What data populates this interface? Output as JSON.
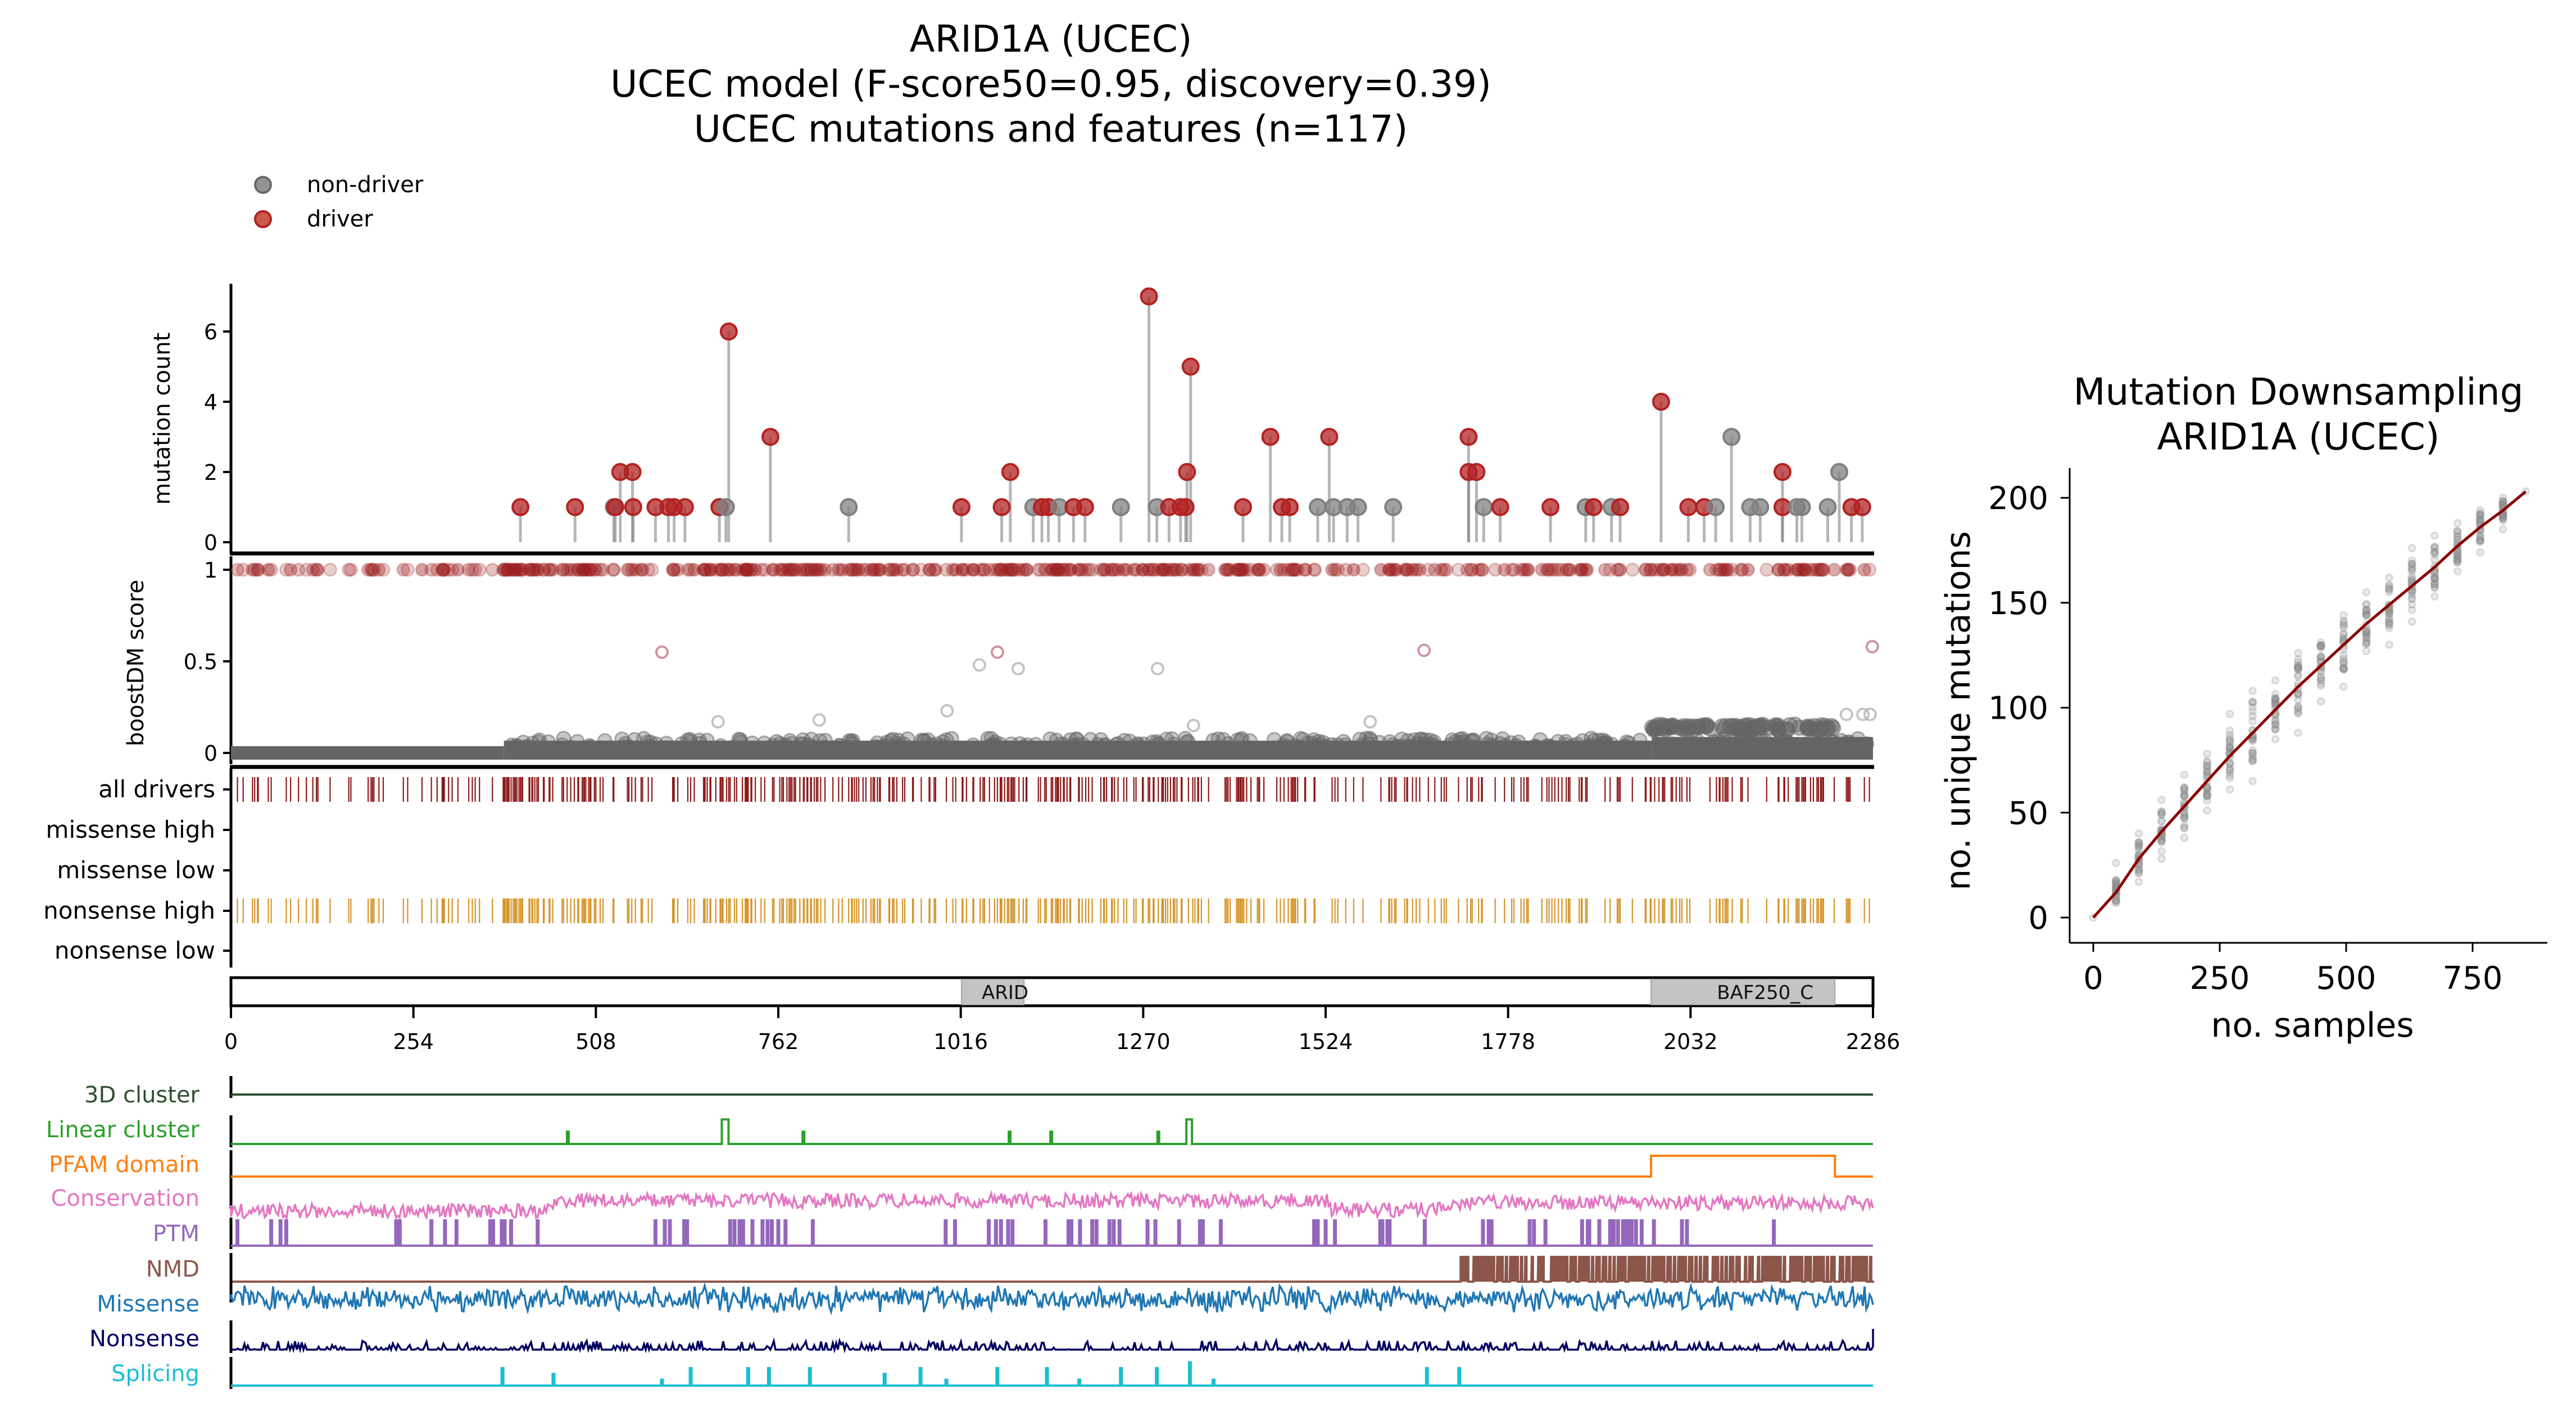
{
  "title_lines": [
    "ARID1A (UCEC)",
    "UCEC model (F-score50=0.95, discovery=0.39)",
    "UCEC mutations and features (n=117)"
  ],
  "legend": [
    {
      "label": "non-driver",
      "color": "#808080"
    },
    {
      "label": "driver",
      "color": "#b22222"
    }
  ],
  "colors": {
    "driver": "#b22222",
    "non_driver": "#808080",
    "stem": "#a9a9a9",
    "all_drivers": "#8b1a1a",
    "nonsense_high": "#d4952b",
    "boost_low": "#656565",
    "boost_high": "#9b1c1c",
    "domain_fill": "#c4c4c4",
    "line": "#8b0000"
  },
  "chart_data": [
    {
      "type": "scatter",
      "name": "lollipop",
      "ylabel": "mutation count",
      "yticks": [
        0,
        2,
        4,
        6
      ],
      "ylim": [
        -0.3,
        7.5
      ],
      "xlim": [
        0,
        2286
      ],
      "points": [
        {
          "pos": 403,
          "count": 1,
          "driver": true
        },
        {
          "pos": 479,
          "count": 1,
          "driver": true
        },
        {
          "pos": 533,
          "count": 1,
          "driver": false
        },
        {
          "pos": 535,
          "count": 1,
          "driver": true
        },
        {
          "pos": 542,
          "count": 2,
          "driver": true
        },
        {
          "pos": 559,
          "count": 2,
          "driver": true
        },
        {
          "pos": 560,
          "count": 1,
          "driver": true
        },
        {
          "pos": 591,
          "count": 1,
          "driver": true
        },
        {
          "pos": 609,
          "count": 1,
          "driver": true
        },
        {
          "pos": 617,
          "count": 1,
          "driver": true
        },
        {
          "pos": 632,
          "count": 1,
          "driver": true
        },
        {
          "pos": 680,
          "count": 1,
          "driver": true
        },
        {
          "pos": 689,
          "count": 1,
          "driver": false
        },
        {
          "pos": 693,
          "count": 6,
          "driver": true
        },
        {
          "pos": 751,
          "count": 3,
          "driver": true
        },
        {
          "pos": 860,
          "count": 1,
          "driver": false
        },
        {
          "pos": 1017,
          "count": 1,
          "driver": true
        },
        {
          "pos": 1073,
          "count": 1,
          "driver": true
        },
        {
          "pos": 1085,
          "count": 2,
          "driver": true
        },
        {
          "pos": 1117,
          "count": 1,
          "driver": false
        },
        {
          "pos": 1129,
          "count": 1,
          "driver": true
        },
        {
          "pos": 1138,
          "count": 1,
          "driver": true
        },
        {
          "pos": 1153,
          "count": 1,
          "driver": false
        },
        {
          "pos": 1173,
          "count": 1,
          "driver": true
        },
        {
          "pos": 1189,
          "count": 1,
          "driver": true
        },
        {
          "pos": 1239,
          "count": 1,
          "driver": false
        },
        {
          "pos": 1278,
          "count": 7,
          "driver": true
        },
        {
          "pos": 1289,
          "count": 1,
          "driver": false
        },
        {
          "pos": 1306,
          "count": 1,
          "driver": true
        },
        {
          "pos": 1322,
          "count": 1,
          "driver": true
        },
        {
          "pos": 1329,
          "count": 1,
          "driver": true
        },
        {
          "pos": 1331,
          "count": 2,
          "driver": true
        },
        {
          "pos": 1336,
          "count": 5,
          "driver": true
        },
        {
          "pos": 1409,
          "count": 1,
          "driver": true
        },
        {
          "pos": 1447,
          "count": 3,
          "driver": true
        },
        {
          "pos": 1463,
          "count": 1,
          "driver": true
        },
        {
          "pos": 1474,
          "count": 1,
          "driver": true
        },
        {
          "pos": 1513,
          "count": 1,
          "driver": false
        },
        {
          "pos": 1529,
          "count": 3,
          "driver": true
        },
        {
          "pos": 1535,
          "count": 1,
          "driver": false
        },
        {
          "pos": 1554,
          "count": 1,
          "driver": false
        },
        {
          "pos": 1569,
          "count": 1,
          "driver": false
        },
        {
          "pos": 1618,
          "count": 1,
          "driver": false
        },
        {
          "pos": 1723,
          "count": 3,
          "driver": true
        },
        {
          "pos": 1723,
          "count": 2,
          "driver": true
        },
        {
          "pos": 1734,
          "count": 2,
          "driver": true
        },
        {
          "pos": 1744,
          "count": 1,
          "driver": false
        },
        {
          "pos": 1767,
          "count": 1,
          "driver": true
        },
        {
          "pos": 1837,
          "count": 1,
          "driver": true
        },
        {
          "pos": 1886,
          "count": 1,
          "driver": false
        },
        {
          "pos": 1897,
          "count": 1,
          "driver": true
        },
        {
          "pos": 1922,
          "count": 1,
          "driver": false
        },
        {
          "pos": 1934,
          "count": 1,
          "driver": true
        },
        {
          "pos": 1991,
          "count": 4,
          "driver": true
        },
        {
          "pos": 2029,
          "count": 1,
          "driver": true
        },
        {
          "pos": 2051,
          "count": 1,
          "driver": true
        },
        {
          "pos": 2067,
          "count": 1,
          "driver": false
        },
        {
          "pos": 2089,
          "count": 3,
          "driver": false
        },
        {
          "pos": 2115,
          "count": 1,
          "driver": false
        },
        {
          "pos": 2129,
          "count": 1,
          "driver": false
        },
        {
          "pos": 2160,
          "count": 2,
          "driver": true
        },
        {
          "pos": 2160,
          "count": 1,
          "driver": true
        },
        {
          "pos": 2180,
          "count": 1,
          "driver": false
        },
        {
          "pos": 2187,
          "count": 1,
          "driver": false
        },
        {
          "pos": 2223,
          "count": 1,
          "driver": false
        },
        {
          "pos": 2239,
          "count": 2,
          "driver": false
        },
        {
          "pos": 2256,
          "count": 1,
          "driver": true
        },
        {
          "pos": 2271,
          "count": 1,
          "driver": true
        }
      ]
    },
    {
      "type": "scatter",
      "name": "boostdm",
      "ylabel": "boostDM score",
      "yticks": [
        {
          "v": 0,
          "label": "0"
        },
        {
          "v": 0.5,
          "label": "0.5"
        },
        {
          "v": 1,
          "label": "1"
        }
      ],
      "ylim": [
        -0.06,
        1.04
      ],
      "xlim": [
        0,
        2286
      ],
      "description": "score ~1 for every predicted driver (nonsense) site; baseline ~0 band across the protein, raised to ~0.05 from residue ~380 and a ~0.14 band within residues 1978-2236",
      "baseline_segments": [
        {
          "from": 0,
          "to": 380,
          "score": 0.0
        },
        {
          "from": 380,
          "to": 1978,
          "score": 0.03
        },
        {
          "from": 1978,
          "to": 2286,
          "score": 0.05
        }
      ],
      "band": {
        "from": 1978,
        "to": 2236,
        "score": 0.14
      },
      "outliers": [
        {
          "pos": 600,
          "score": 0.55,
          "driver": true
        },
        {
          "pos": 1067,
          "score": 0.55,
          "driver": true
        },
        {
          "pos": 1661,
          "score": 0.56,
          "driver": true
        },
        {
          "pos": 2285,
          "score": 0.58,
          "driver": true
        },
        {
          "pos": 1042,
          "score": 0.48,
          "driver": false
        },
        {
          "pos": 1096,
          "score": 0.46,
          "driver": false
        },
        {
          "pos": 1290,
          "score": 0.46,
          "driver": false
        },
        {
          "pos": 678,
          "score": 0.17,
          "driver": false
        },
        {
          "pos": 819,
          "score": 0.18,
          "driver": false
        },
        {
          "pos": 997,
          "score": 0.23,
          "driver": false
        },
        {
          "pos": 1340,
          "score": 0.15,
          "driver": false
        },
        {
          "pos": 1586,
          "score": 0.17,
          "driver": false
        },
        {
          "pos": 2249,
          "score": 0.21,
          "driver": false
        },
        {
          "pos": 2272,
          "score": 0.21,
          "driver": false
        },
        {
          "pos": 2282,
          "score": 0.21,
          "driver": false
        }
      ],
      "driver_density_note": "drivers at score 1 are denser in residues 380-1350 and 1500-2286"
    },
    {
      "type": "table",
      "name": "driver-tracks",
      "rows": [
        "all drivers",
        "missense high",
        "missense low",
        "nonsense high",
        "nonsense low"
      ],
      "filled_rows": [
        "all drivers",
        "nonsense high"
      ]
    },
    {
      "type": "bar",
      "name": "protein-domains",
      "xticks": [
        0,
        254,
        508,
        762,
        1016,
        1270,
        1524,
        1778,
        2032,
        2286
      ],
      "domains": [
        {
          "name": "ARID",
          "start": 1017,
          "end": 1104
        },
        {
          "name": "BAF250_C",
          "start": 1977,
          "end": 2233
        }
      ]
    },
    {
      "type": "line",
      "name": "feature-tracks",
      "tracks": [
        {
          "label": "3D cluster",
          "color": "#2f4f2f",
          "kind": "flat"
        },
        {
          "label": "Linear cluster",
          "color": "#2ca02c",
          "kind": "spikes",
          "spikes": [
            {
              "pos": 469,
              "h": 0.5
            },
            {
              "pos": 688,
              "h": 1.0,
              "w": 6
            },
            {
              "pos": 797,
              "h": 0.5
            },
            {
              "pos": 1084,
              "h": 0.5
            },
            {
              "pos": 1142,
              "h": 0.5
            },
            {
              "pos": 1291,
              "h": 0.5
            },
            {
              "pos": 1334,
              "h": 1.0,
              "w": 5
            }
          ]
        },
        {
          "label": "PFAM domain",
          "color": "#ff7f0e",
          "kind": "step",
          "steps": [
            {
              "from": 1977,
              "to": 2233
            }
          ]
        },
        {
          "label": "Conservation",
          "color": "#e377c2",
          "kind": "noise"
        },
        {
          "label": "PTM",
          "color": "#9467bd",
          "kind": "bars",
          "positions": [
            9,
            56,
            69,
            77,
            230,
            235,
            279,
            298,
            314,
            361,
            365,
            377,
            381,
            390,
            427,
            591,
            604,
            611,
            631,
            635,
            695,
            701,
            708,
            713,
            726,
            740,
            747,
            753,
            762,
            772,
            810,
            995,
            1008,
            1055,
            1065,
            1072,
            1082,
            1088,
            1134,
            1166,
            1170,
            1182,
            1199,
            1205,
            1223,
            1229,
            1237,
            1276,
            1287,
            1320,
            1349,
            1353,
            1378,
            1508,
            1513,
            1524,
            1537,
            1600,
            1603,
            1610,
            1613,
            1662,
            1743,
            1751,
            1755,
            1808,
            1814,
            1830,
            1881,
            1889,
            1891,
            1905,
            1920,
            1925,
            1931,
            1938,
            1942,
            1946,
            1950,
            1956,
            1964,
            1981,
            2020,
            2027,
            2148
          ]
        },
        {
          "label": "NMD",
          "color": "#8c564b",
          "kind": "dense-from",
          "from": 1712
        },
        {
          "label": "Missense",
          "color": "#1f77b4",
          "kind": "noise"
        },
        {
          "label": "Nonsense",
          "color": "#000060",
          "kind": "noise-low"
        },
        {
          "label": "Splicing",
          "color": "#17becf",
          "kind": "spikes",
          "spikes": [
            {
              "pos": 378,
              "h": 0.75
            },
            {
              "pos": 449,
              "h": 0.5
            },
            {
              "pos": 600,
              "h": 0.25
            },
            {
              "pos": 640,
              "h": 0.75
            },
            {
              "pos": 720,
              "h": 0.75
            },
            {
              "pos": 749,
              "h": 0.75
            },
            {
              "pos": 806,
              "h": 0.75
            },
            {
              "pos": 910,
              "h": 0.5
            },
            {
              "pos": 960,
              "h": 0.75
            },
            {
              "pos": 996,
              "h": 0.25
            },
            {
              "pos": 1067,
              "h": 0.75
            },
            {
              "pos": 1136,
              "h": 0.75
            },
            {
              "pos": 1181,
              "h": 0.25
            },
            {
              "pos": 1239,
              "h": 0.75
            },
            {
              "pos": 1289,
              "h": 0.75
            },
            {
              "pos": 1335,
              "h": 1.0
            },
            {
              "pos": 1368,
              "h": 0.25
            },
            {
              "pos": 1665,
              "h": 0.75
            },
            {
              "pos": 1710,
              "h": 0.75
            }
          ]
        }
      ]
    },
    {
      "type": "scatter",
      "name": "downsampling",
      "title": "Mutation Downsampling\nARID1A (UCEC)",
      "title_lines": [
        "Mutation Downsampling",
        "ARID1A (UCEC)"
      ],
      "xlabel": "no. samples",
      "ylabel": "no. unique mutations",
      "xticks": [
        0,
        250,
        500,
        750
      ],
      "yticks": [
        0,
        50,
        100,
        150,
        200
      ],
      "xlim": [
        -35,
        900
      ],
      "ylim": [
        -12,
        214
      ],
      "x": [
        0,
        45,
        90,
        135,
        180,
        225,
        270,
        315,
        360,
        405,
        450,
        495,
        540,
        585,
        630,
        675,
        720,
        765,
        810,
        855
      ],
      "fit": [
        0,
        12,
        28,
        41,
        53,
        65,
        77,
        88,
        99,
        110,
        120,
        130,
        140,
        149,
        158,
        167,
        177,
        186,
        194,
        203
      ],
      "spread_min": [
        0,
        8,
        17,
        28,
        38,
        51,
        61,
        65,
        85,
        88,
        103,
        110,
        127,
        130,
        141,
        153,
        165,
        174,
        185,
        203
      ],
      "spread_max": [
        0,
        26,
        40,
        56,
        68,
        78,
        97,
        108,
        113,
        126,
        131,
        144,
        155,
        162,
        176,
        182,
        188,
        194,
        200,
        203
      ]
    }
  ]
}
